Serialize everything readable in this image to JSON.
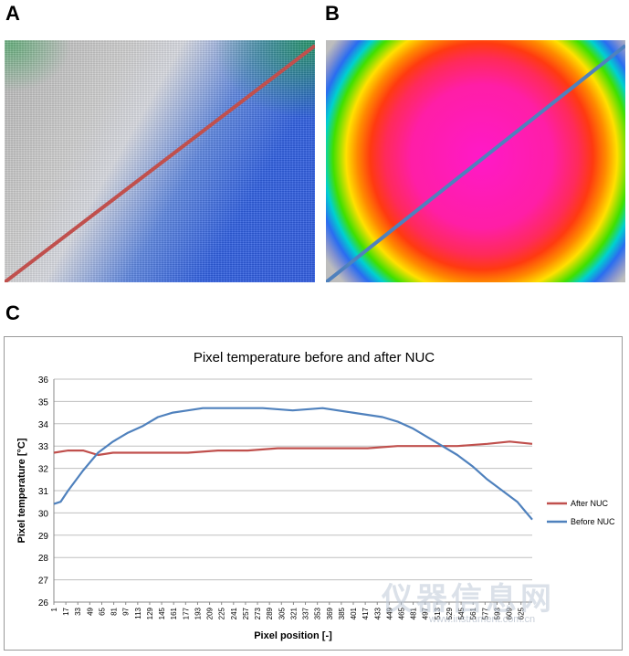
{
  "panels": {
    "a_label": "A",
    "b_label": "B",
    "c_label": "C"
  },
  "watermark": {
    "text": "仪器信息网",
    "url": "www.instrument.com.cn"
  },
  "colors": {
    "after": "#c0504d",
    "before": "#4f81bd",
    "lineA": "#c0504d",
    "lineB": "#4f81bd",
    "grid": "#bfbfbf"
  },
  "chart_data": {
    "type": "line",
    "title": "Pixel temperature before and after NUC",
    "xlabel": "Pixel position [-]",
    "ylabel": "Pixel temperature [°C]",
    "ylim": [
      26,
      36
    ],
    "yticks": [
      26,
      27,
      28,
      29,
      30,
      31,
      32,
      33,
      34,
      35,
      36
    ],
    "xlim": [
      1,
      640
    ],
    "xticks": [
      1,
      17,
      33,
      49,
      65,
      81,
      97,
      113,
      129,
      145,
      161,
      177,
      193,
      209,
      225,
      241,
      257,
      273,
      289,
      305,
      321,
      337,
      353,
      369,
      385,
      401,
      417,
      433,
      449,
      465,
      481,
      497,
      513,
      529,
      545,
      561,
      577,
      593,
      609,
      625
    ],
    "grid": true,
    "legend_position": "right",
    "series": [
      {
        "name": "After NUC",
        "color": "#c0504d",
        "x": [
          1,
          20,
          40,
          60,
          80,
          100,
          140,
          180,
          220,
          260,
          300,
          340,
          380,
          420,
          460,
          500,
          540,
          580,
          610,
          640
        ],
        "y": [
          32.7,
          32.8,
          32.8,
          32.6,
          32.7,
          32.7,
          32.7,
          32.7,
          32.8,
          32.8,
          32.9,
          32.9,
          32.9,
          32.9,
          33.0,
          33.0,
          33.0,
          33.1,
          33.2,
          33.1
        ]
      },
      {
        "name": "Before NUC",
        "color": "#4f81bd",
        "x": [
          1,
          10,
          20,
          40,
          60,
          80,
          100,
          120,
          140,
          160,
          180,
          200,
          240,
          280,
          320,
          360,
          400,
          440,
          460,
          480,
          500,
          520,
          540,
          560,
          580,
          600,
          620,
          630,
          640
        ],
        "y": [
          30.4,
          30.5,
          31.0,
          31.9,
          32.7,
          33.2,
          33.6,
          33.9,
          34.3,
          34.5,
          34.6,
          34.7,
          34.7,
          34.7,
          34.6,
          34.7,
          34.5,
          34.3,
          34.1,
          33.8,
          33.4,
          33.0,
          32.6,
          32.1,
          31.5,
          31.0,
          30.5,
          30.1,
          29.7
        ]
      }
    ]
  }
}
